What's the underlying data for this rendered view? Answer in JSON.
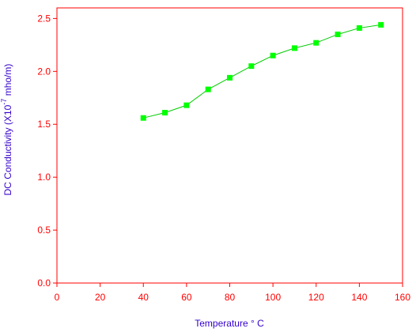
{
  "chart_data": {
    "type": "line",
    "x_label": "Temperature ° C",
    "y_label": {
      "before": "DC Conductivity (X10",
      "sup": "-7",
      "after": " mho/m)"
    },
    "x": [
      40,
      50,
      60,
      70,
      80,
      90,
      100,
      110,
      120,
      130,
      140,
      150
    ],
    "series": [
      {
        "color": "#00cc00",
        "marker_color": "#00ff00",
        "values": [
          1.56,
          1.61,
          1.68,
          1.83,
          1.94,
          2.05,
          2.15,
          2.22,
          2.27,
          2.35,
          2.41,
          2.44
        ]
      }
    ],
    "xlim": [
      0,
      160
    ],
    "xticks": [
      0,
      20,
      40,
      60,
      80,
      100,
      120,
      140,
      160
    ],
    "ylim": [
      0,
      2.6
    ],
    "yticks": [
      {
        "value": 0,
        "label": "0.0"
      },
      0.5,
      {
        "value": 1,
        "label": "1.0"
      },
      1.5,
      {
        "value": 2,
        "label": "2.0"
      },
      2.5
    ],
    "axis_color": "#ff0000",
    "title_color": "#3300cc"
  }
}
